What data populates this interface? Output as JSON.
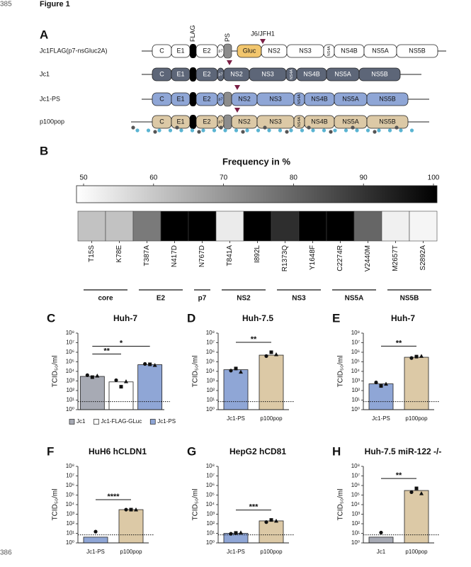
{
  "page": {
    "line_numbers": [
      "385",
      "386"
    ],
    "figure_title": "Figure 1"
  },
  "panel_a": {
    "label": "A",
    "markers": {
      "flag": "FLAG",
      "ps": "PS",
      "junction": "J6/JFH1"
    },
    "rows": [
      {
        "name": "Jc1FLAG(p7-nsGluc2A)",
        "ps_insert": true,
        "fill": "#ffffff",
        "text_color": "#111111",
        "segments": [
          "C",
          "E1",
          "E2",
          "p7",
          "Gluc",
          "NS2",
          "NS3",
          "NS4A",
          "NS4B",
          "NS5A",
          "NS5B"
        ]
      },
      {
        "name": "Jc1",
        "ps_insert": false,
        "fill": "#5d6678",
        "text_color": "#ffffff",
        "segments": [
          "C",
          "E1",
          "E2",
          "p7",
          "NS2",
          "NS3",
          "NS4A",
          "NS4B",
          "NS5A",
          "NS5B"
        ]
      },
      {
        "name": "Jc1-PS",
        "ps_insert": true,
        "fill": "#8fa6d6",
        "text_color": "#111111",
        "segments": [
          "C",
          "E1",
          "E2",
          "p7",
          "NS2",
          "NS3",
          "NS4A",
          "NS4B",
          "NS5A",
          "NS5B"
        ]
      },
      {
        "name": "p100pop",
        "ps_insert": true,
        "fill": "#dcc9a6",
        "text_color": "#111111",
        "segments": [
          "C",
          "E1",
          "E2",
          "p7",
          "NS2",
          "NS3",
          "NS4A",
          "NS4B",
          "NS5A",
          "NS5B"
        ]
      }
    ]
  },
  "panel_b": {
    "label": "B",
    "title": "Frequency in %",
    "colorbar": {
      "lim": [
        50,
        100
      ],
      "ticks": [
        50,
        60,
        70,
        80,
        90,
        100
      ]
    },
    "groups": [
      {
        "label": "core",
        "categories": [
          "T15S",
          "K78E"
        ],
        "values": [
          62,
          62
        ]
      },
      {
        "label": "E2",
        "categories": [
          "T387A",
          "N417D"
        ],
        "values": [
          76,
          100
        ]
      },
      {
        "label": "p7",
        "categories": [
          "N767D"
        ],
        "values": [
          100
        ]
      },
      {
        "label": "NS2",
        "categories": [
          "T841A",
          "I892L"
        ],
        "values": [
          54,
          100
        ]
      },
      {
        "label": "NS3",
        "categories": [
          "R1373Q",
          "Y1648F"
        ],
        "values": [
          91,
          100
        ]
      },
      {
        "label": "NS5A",
        "categories": [
          "C2274R",
          "V2440M"
        ],
        "values": [
          100,
          80
        ]
      },
      {
        "label": "NS5B",
        "categories": [
          "M2657T",
          "S2892A"
        ],
        "values": [
          53,
          52
        ]
      }
    ]
  },
  "chart_data": [
    {
      "type": "bar",
      "panel": "C",
      "title": "Huh-7",
      "ylabel": "TCID₅₀/ml",
      "log_scale": true,
      "categories": [
        "Jc1",
        "Jc1-FLAG-GLuc",
        "Jc1-PS"
      ],
      "colors": [
        "#a7aab4",
        "#ffffff",
        "#8fa6d6"
      ],
      "values": [
        3000,
        800,
        50000
      ],
      "replicates": [
        [
          4000,
          2500,
          3500
        ],
        [
          1200,
          250,
          900
        ],
        [
          60000,
          55000,
          45000
        ]
      ],
      "ylim": [
        1,
        100000000
      ],
      "yticks": [
        {
          "value": 1,
          "label": "10⁰"
        },
        {
          "value": 10,
          "label": "10¹"
        },
        {
          "value": 100,
          "label": "10²"
        },
        {
          "value": 1000,
          "label": "10³"
        },
        {
          "value": 10000,
          "label": "10⁴"
        },
        {
          "value": 100000,
          "label": "10⁵"
        },
        {
          "value": 1000000,
          "label": "10⁶"
        },
        {
          "value": 10000000,
          "label": "10⁷"
        },
        {
          "value": 100000000,
          "label": "10⁸"
        }
      ],
      "detection_limit": 7,
      "significance": [
        {
          "label": "**",
          "between": [
            "Jc1",
            "Jc1-FLAG-GLuc"
          ]
        },
        {
          "label": "*",
          "between": [
            "Jc1",
            "Jc1-PS"
          ]
        }
      ],
      "legend": "bottom"
    },
    {
      "type": "bar",
      "panel": "D",
      "title": "Huh-7.5",
      "ylabel": "TCID₅₀/ml",
      "log_scale": true,
      "categories": [
        "Jc1-PS",
        "p100pop"
      ],
      "colors": [
        "#8fa6d6",
        "#dcc9a6"
      ],
      "values": [
        15000,
        500000
      ],
      "replicates": [
        [
          12000,
          20000,
          9000
        ],
        [
          400000,
          1000000,
          600000
        ]
      ],
      "ylim": [
        1,
        100000000
      ],
      "yticks": [
        {
          "value": 1,
          "label": "10⁰"
        },
        {
          "value": 10,
          "label": "10¹"
        },
        {
          "value": 100,
          "label": "10²"
        },
        {
          "value": 1000,
          "label": "10³"
        },
        {
          "value": 10000,
          "label": "10⁴"
        },
        {
          "value": 100000,
          "label": "10⁵"
        },
        {
          "value": 1000000,
          "label": "10⁶"
        },
        {
          "value": 10000000,
          "label": "10⁷"
        },
        {
          "value": 100000000,
          "label": "10⁸"
        }
      ],
      "detection_limit": 7,
      "significance": [
        {
          "label": "**",
          "between": [
            "Jc1-PS",
            "p100pop"
          ]
        }
      ]
    },
    {
      "type": "bar",
      "panel": "E",
      "title": "Huh-7",
      "ylabel": "TCID₅₀/ml",
      "log_scale": true,
      "categories": [
        "Jc1-PS",
        "p100pop"
      ],
      "colors": [
        "#8fa6d6",
        "#dcc9a6"
      ],
      "values": [
        500,
        300000
      ],
      "replicates": [
        [
          700,
          300,
          500
        ],
        [
          250000,
          350000,
          400000
        ]
      ],
      "ylim": [
        1,
        100000000
      ],
      "yticks": [
        {
          "value": 1,
          "label": "10⁰"
        },
        {
          "value": 10,
          "label": "10¹"
        },
        {
          "value": 100,
          "label": "10²"
        },
        {
          "value": 1000,
          "label": "10³"
        },
        {
          "value": 10000,
          "label": "10⁴"
        },
        {
          "value": 100000,
          "label": "10⁵"
        },
        {
          "value": 1000000,
          "label": "10⁶"
        },
        {
          "value": 10000000,
          "label": "10⁷"
        },
        {
          "value": 100000000,
          "label": "10⁸"
        }
      ],
      "detection_limit": 7,
      "significance": [
        {
          "label": "**",
          "between": [
            "Jc1-PS",
            "p100pop"
          ]
        }
      ]
    },
    {
      "type": "bar",
      "panel": "F",
      "title": "HuH6 hCLDN1",
      "ylabel": "TCID₅₀/ml",
      "log_scale": true,
      "categories": [
        "Jc1-PS",
        "p100pop"
      ],
      "colors": [
        "#8fa6d6",
        "#dcc9a6"
      ],
      "values": [
        4,
        3000
      ],
      "replicates": [
        [
          15
        ],
        [
          3000,
          3000,
          3000
        ]
      ],
      "ylim": [
        1,
        100000000
      ],
      "yticks": [
        {
          "value": 1,
          "label": "10⁰"
        },
        {
          "value": 10,
          "label": "10¹"
        },
        {
          "value": 100,
          "label": "10²"
        },
        {
          "value": 1000,
          "label": "10³"
        },
        {
          "value": 10000,
          "label": "10⁴"
        },
        {
          "value": 100000,
          "label": "10⁵"
        },
        {
          "value": 1000000,
          "label": "10⁶"
        },
        {
          "value": 10000000,
          "label": "10⁷"
        },
        {
          "value": 100000000,
          "label": "10⁸"
        }
      ],
      "detection_limit": 7,
      "significance": [
        {
          "label": "****",
          "between": [
            "Jc1-PS",
            "p100pop"
          ]
        }
      ]
    },
    {
      "type": "bar",
      "panel": "G",
      "title": "HepG2 hCD81",
      "ylabel": "TCID₅₀/ml",
      "log_scale": true,
      "categories": [
        "Jc1-PS",
        "p100pop"
      ],
      "colors": [
        "#8fa6d6",
        "#dcc9a6"
      ],
      "values": [
        10,
        200
      ],
      "replicates": [
        [
          9,
          11,
          12
        ],
        [
          150,
          250,
          200
        ]
      ],
      "ylim": [
        1,
        100000000
      ],
      "yticks": [
        {
          "value": 1,
          "label": "10⁰"
        },
        {
          "value": 10,
          "label": "10¹"
        },
        {
          "value": 100,
          "label": "10²"
        },
        {
          "value": 1000,
          "label": "10³"
        },
        {
          "value": 10000,
          "label": "10⁴"
        },
        {
          "value": 100000,
          "label": "10⁵"
        },
        {
          "value": 1000000,
          "label": "10⁶"
        },
        {
          "value": 10000000,
          "label": "10⁷"
        },
        {
          "value": 100000000,
          "label": "10⁸"
        }
      ],
      "detection_limit": 7,
      "significance": [
        {
          "label": "***",
          "between": [
            "Jc1-PS",
            "p100pop"
          ]
        }
      ]
    },
    {
      "type": "bar",
      "panel": "H",
      "title": "Huh-7.5 miR-122 -/-",
      "ylabel": "TCID₅₀/ml",
      "log_scale": true,
      "categories": [
        "Jc1",
        "p100pop"
      ],
      "colors": [
        "#a7aab4",
        "#dcc9a6"
      ],
      "values": [
        4,
        300000
      ],
      "replicates": [
        [
          12
        ],
        [
          200000,
          500000,
          150000
        ]
      ],
      "ylim": [
        1,
        100000000
      ],
      "yticks": [
        {
          "value": 1,
          "label": "10⁰"
        },
        {
          "value": 10,
          "label": "10¹"
        },
        {
          "value": 100,
          "label": "10²"
        },
        {
          "value": 1000,
          "label": "10³"
        },
        {
          "value": 10000,
          "label": "10⁴"
        },
        {
          "value": 100000,
          "label": "10⁵"
        },
        {
          "value": 1000000,
          "label": "10⁶"
        },
        {
          "value": 10000000,
          "label": "10⁷"
        },
        {
          "value": 100000000,
          "label": "10⁸"
        }
      ],
      "detection_limit": 7,
      "significance": [
        {
          "label": "**",
          "between": [
            "Jc1",
            "p100pop"
          ]
        }
      ]
    }
  ]
}
